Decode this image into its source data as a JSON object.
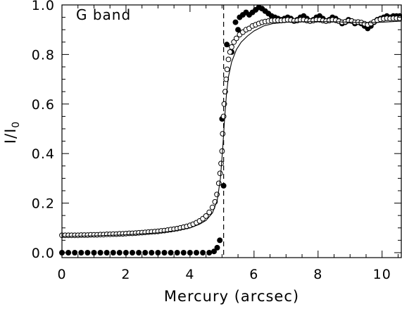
{
  "chart_data": {
    "type": "scatter",
    "title": "G band",
    "xlabel": "Mercury (arcsec)",
    "ylabel": "I/I",
    "ylabel_subscript": "0",
    "xlim": [
      0,
      10.6
    ],
    "ylim": [
      -0.02,
      1.0
    ],
    "grid": false,
    "x_ticks": [
      0,
      2,
      4,
      6,
      8,
      10
    ],
    "x_tick_labels": [
      "0",
      "2",
      "4",
      "6",
      "8",
      "10"
    ],
    "y_ticks": [
      0.0,
      0.2,
      0.4,
      0.6,
      0.8,
      1.0
    ],
    "y_tick_labels": [
      "0.0",
      "0.2",
      "0.4",
      "0.6",
      "0.8",
      "1.0"
    ],
    "vline_x": 5.05,
    "series": [
      {
        "marker": "filled-circle",
        "points": [
          [
            0.0,
            0.0
          ],
          [
            0.2,
            0.0
          ],
          [
            0.4,
            0.0
          ],
          [
            0.6,
            0.0
          ],
          [
            0.8,
            0.0
          ],
          [
            1.0,
            0.0
          ],
          [
            1.2,
            0.0
          ],
          [
            1.4,
            0.0
          ],
          [
            1.6,
            0.0
          ],
          [
            1.8,
            0.0
          ],
          [
            2.0,
            0.0
          ],
          [
            2.2,
            0.0
          ],
          [
            2.4,
            0.0
          ],
          [
            2.6,
            0.0
          ],
          [
            2.8,
            0.0
          ],
          [
            3.0,
            0.0
          ],
          [
            3.2,
            0.0
          ],
          [
            3.4,
            0.0
          ],
          [
            3.6,
            0.0
          ],
          [
            3.8,
            0.0
          ],
          [
            4.0,
            0.0
          ],
          [
            4.2,
            0.0
          ],
          [
            4.4,
            0.0
          ],
          [
            4.6,
            0.0
          ],
          [
            4.75,
            0.005
          ],
          [
            4.85,
            0.02
          ],
          [
            4.93,
            0.05
          ],
          [
            5.05,
            0.27
          ],
          [
            5.0,
            0.54
          ],
          [
            5.15,
            0.84
          ],
          [
            5.3,
            0.81
          ],
          [
            5.42,
            0.93
          ],
          [
            5.5,
            0.9
          ],
          [
            5.55,
            0.95
          ],
          [
            5.65,
            0.96
          ],
          [
            5.75,
            0.97
          ],
          [
            5.85,
            0.96
          ],
          [
            5.95,
            0.97
          ],
          [
            6.05,
            0.98
          ],
          [
            6.15,
            0.99
          ],
          [
            6.25,
            0.985
          ],
          [
            6.35,
            0.975
          ],
          [
            6.45,
            0.965
          ],
          [
            6.55,
            0.955
          ],
          [
            6.65,
            0.95
          ],
          [
            6.75,
            0.945
          ],
          [
            6.85,
            0.94
          ],
          [
            6.95,
            0.945
          ],
          [
            7.05,
            0.95
          ],
          [
            7.15,
            0.945
          ],
          [
            7.25,
            0.935
          ],
          [
            7.35,
            0.94
          ],
          [
            7.45,
            0.95
          ],
          [
            7.55,
            0.955
          ],
          [
            7.65,
            0.945
          ],
          [
            7.75,
            0.935
          ],
          [
            7.85,
            0.94
          ],
          [
            7.95,
            0.95
          ],
          [
            8.05,
            0.955
          ],
          [
            8.15,
            0.945
          ],
          [
            8.25,
            0.935
          ],
          [
            8.35,
            0.94
          ],
          [
            8.45,
            0.95
          ],
          [
            8.55,
            0.945
          ],
          [
            8.65,
            0.935
          ],
          [
            8.75,
            0.925
          ],
          [
            8.85,
            0.93
          ],
          [
            8.95,
            0.94
          ],
          [
            9.05,
            0.935
          ],
          [
            9.15,
            0.925
          ],
          [
            9.25,
            0.93
          ],
          [
            9.35,
            0.925
          ],
          [
            9.45,
            0.915
          ],
          [
            9.55,
            0.905
          ],
          [
            9.65,
            0.915
          ],
          [
            9.75,
            0.93
          ],
          [
            9.85,
            0.94
          ],
          [
            9.95,
            0.945
          ],
          [
            10.05,
            0.95
          ],
          [
            10.15,
            0.955
          ],
          [
            10.25,
            0.95
          ],
          [
            10.35,
            0.955
          ],
          [
            10.45,
            0.955
          ],
          [
            10.55,
            0.955
          ]
        ]
      },
      {
        "marker": "open-circle",
        "points": [
          [
            0.0,
            0.07
          ],
          [
            0.1,
            0.07
          ],
          [
            0.2,
            0.07
          ],
          [
            0.3,
            0.07
          ],
          [
            0.4,
            0.07
          ],
          [
            0.5,
            0.07
          ],
          [
            0.6,
            0.071
          ],
          [
            0.7,
            0.071
          ],
          [
            0.8,
            0.071
          ],
          [
            0.9,
            0.072
          ],
          [
            1.0,
            0.072
          ],
          [
            1.1,
            0.072
          ],
          [
            1.2,
            0.073
          ],
          [
            1.3,
            0.073
          ],
          [
            1.4,
            0.074
          ],
          [
            1.5,
            0.074
          ],
          [
            1.6,
            0.075
          ],
          [
            1.7,
            0.075
          ],
          [
            1.8,
            0.076
          ],
          [
            1.9,
            0.076
          ],
          [
            2.0,
            0.077
          ],
          [
            2.1,
            0.078
          ],
          [
            2.2,
            0.078
          ],
          [
            2.3,
            0.079
          ],
          [
            2.4,
            0.08
          ],
          [
            2.5,
            0.081
          ],
          [
            2.6,
            0.082
          ],
          [
            2.7,
            0.083
          ],
          [
            2.8,
            0.084
          ],
          [
            2.9,
            0.085
          ],
          [
            3.0,
            0.086
          ],
          [
            3.1,
            0.088
          ],
          [
            3.2,
            0.089
          ],
          [
            3.3,
            0.091
          ],
          [
            3.4,
            0.093
          ],
          [
            3.5,
            0.095
          ],
          [
            3.6,
            0.097
          ],
          [
            3.7,
            0.1
          ],
          [
            3.8,
            0.103
          ],
          [
            3.9,
            0.106
          ],
          [
            4.0,
            0.11
          ],
          [
            4.1,
            0.115
          ],
          [
            4.2,
            0.121
          ],
          [
            4.3,
            0.128
          ],
          [
            4.4,
            0.137
          ],
          [
            4.5,
            0.148
          ],
          [
            4.6,
            0.163
          ],
          [
            4.7,
            0.183
          ],
          [
            4.78,
            0.205
          ],
          [
            4.84,
            0.235
          ],
          [
            4.9,
            0.28
          ],
          [
            4.94,
            0.32
          ],
          [
            4.97,
            0.36
          ],
          [
            5.0,
            0.41
          ],
          [
            5.02,
            0.48
          ],
          [
            5.05,
            0.55
          ],
          [
            5.07,
            0.6
          ],
          [
            5.1,
            0.65
          ],
          [
            5.13,
            0.7
          ],
          [
            5.16,
            0.74
          ],
          [
            5.2,
            0.78
          ],
          [
            5.25,
            0.81
          ],
          [
            5.3,
            0.83
          ],
          [
            5.37,
            0.85
          ],
          [
            5.45,
            0.865
          ],
          [
            5.55,
            0.88
          ],
          [
            5.65,
            0.89
          ],
          [
            5.75,
            0.9
          ],
          [
            5.85,
            0.905
          ],
          [
            5.95,
            0.915
          ],
          [
            6.05,
            0.92
          ],
          [
            6.15,
            0.925
          ],
          [
            6.25,
            0.93
          ],
          [
            6.35,
            0.933
          ],
          [
            6.45,
            0.935
          ],
          [
            6.55,
            0.937
          ],
          [
            6.65,
            0.938
          ],
          [
            6.75,
            0.938
          ],
          [
            6.85,
            0.937
          ],
          [
            6.95,
            0.938
          ],
          [
            7.05,
            0.94
          ],
          [
            7.15,
            0.939
          ],
          [
            7.25,
            0.936
          ],
          [
            7.35,
            0.937
          ],
          [
            7.45,
            0.94
          ],
          [
            7.55,
            0.94
          ],
          [
            7.65,
            0.937
          ],
          [
            7.75,
            0.935
          ],
          [
            7.85,
            0.937
          ],
          [
            7.95,
            0.94
          ],
          [
            8.05,
            0.94
          ],
          [
            8.15,
            0.937
          ],
          [
            8.25,
            0.935
          ],
          [
            8.35,
            0.937
          ],
          [
            8.45,
            0.94
          ],
          [
            8.55,
            0.938
          ],
          [
            8.65,
            0.934
          ],
          [
            8.75,
            0.93
          ],
          [
            8.85,
            0.932
          ],
          [
            8.95,
            0.936
          ],
          [
            9.05,
            0.935
          ],
          [
            9.15,
            0.93
          ],
          [
            9.25,
            0.931
          ],
          [
            9.35,
            0.929
          ],
          [
            9.45,
            0.924
          ],
          [
            9.55,
            0.92
          ],
          [
            9.65,
            0.925
          ],
          [
            9.75,
            0.932
          ],
          [
            9.85,
            0.938
          ],
          [
            9.95,
            0.942
          ],
          [
            10.05,
            0.944
          ],
          [
            10.15,
            0.946
          ],
          [
            10.25,
            0.945
          ],
          [
            10.35,
            0.946
          ],
          [
            10.45,
            0.946
          ],
          [
            10.55,
            0.946
          ]
        ]
      },
      {
        "marker": "line",
        "points": [
          [
            0.0,
            0.065
          ],
          [
            1.0,
            0.068
          ],
          [
            2.0,
            0.072
          ],
          [
            3.0,
            0.08
          ],
          [
            3.5,
            0.088
          ],
          [
            4.0,
            0.1
          ],
          [
            4.3,
            0.115
          ],
          [
            4.5,
            0.13
          ],
          [
            4.7,
            0.16
          ],
          [
            4.85,
            0.21
          ],
          [
            4.95,
            0.3
          ],
          [
            5.02,
            0.42
          ],
          [
            5.08,
            0.54
          ],
          [
            5.14,
            0.64
          ],
          [
            5.2,
            0.71
          ],
          [
            5.3,
            0.77
          ],
          [
            5.45,
            0.82
          ],
          [
            5.6,
            0.85
          ],
          [
            5.8,
            0.875
          ],
          [
            6.0,
            0.895
          ],
          [
            6.3,
            0.915
          ],
          [
            6.6,
            0.925
          ],
          [
            7.0,
            0.93
          ],
          [
            7.5,
            0.932
          ],
          [
            8.0,
            0.933
          ],
          [
            8.5,
            0.932
          ],
          [
            9.0,
            0.93
          ],
          [
            9.5,
            0.928
          ],
          [
            10.0,
            0.93
          ],
          [
            10.6,
            0.935
          ]
        ]
      }
    ]
  }
}
